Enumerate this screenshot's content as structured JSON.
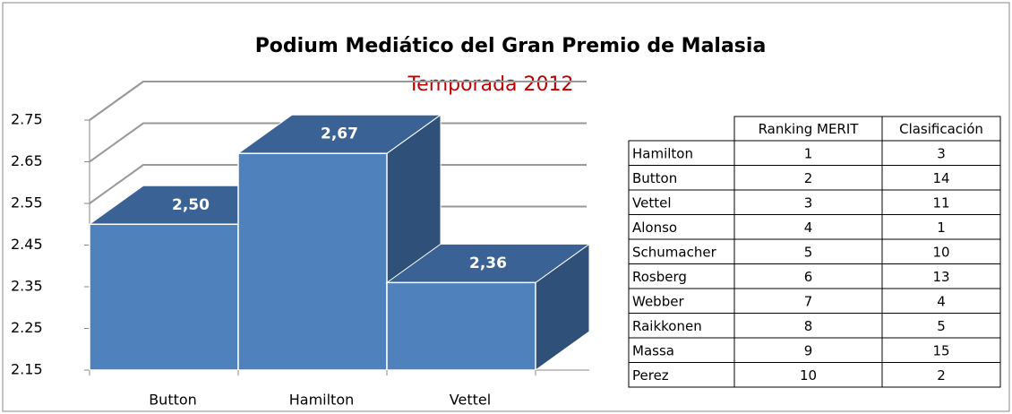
{
  "chart_data": {
    "type": "bar3d",
    "title": "Podium Mediático del Gran Premio de Malasia",
    "subtitle": "Temporada 2012",
    "categories": [
      "Button",
      "Hamilton",
      "Vettel"
    ],
    "values": [
      2.5,
      2.67,
      2.36
    ],
    "value_labels": [
      "2,50",
      "2,67",
      "2,36"
    ],
    "color": "#4f81bd",
    "ylim": [
      2.15,
      2.75
    ],
    "yticks": [
      2.15,
      2.25,
      2.35,
      2.45,
      2.55,
      2.65,
      2.75
    ],
    "grid": true
  },
  "table": {
    "columns": [
      "Ranking MERIT",
      "Clasificación"
    ],
    "rows": [
      [
        "Hamilton",
        1,
        3
      ],
      [
        "Button",
        2,
        14
      ],
      [
        "Vettel",
        3,
        11
      ],
      [
        "Alonso",
        4,
        1
      ],
      [
        "Schumacher",
        5,
        10
      ],
      [
        "Rosberg",
        6,
        13
      ],
      [
        "Webber",
        7,
        4
      ],
      [
        "Raikkonen",
        8,
        5
      ],
      [
        "Massa",
        9,
        15
      ],
      [
        "Perez",
        10,
        2
      ]
    ]
  }
}
